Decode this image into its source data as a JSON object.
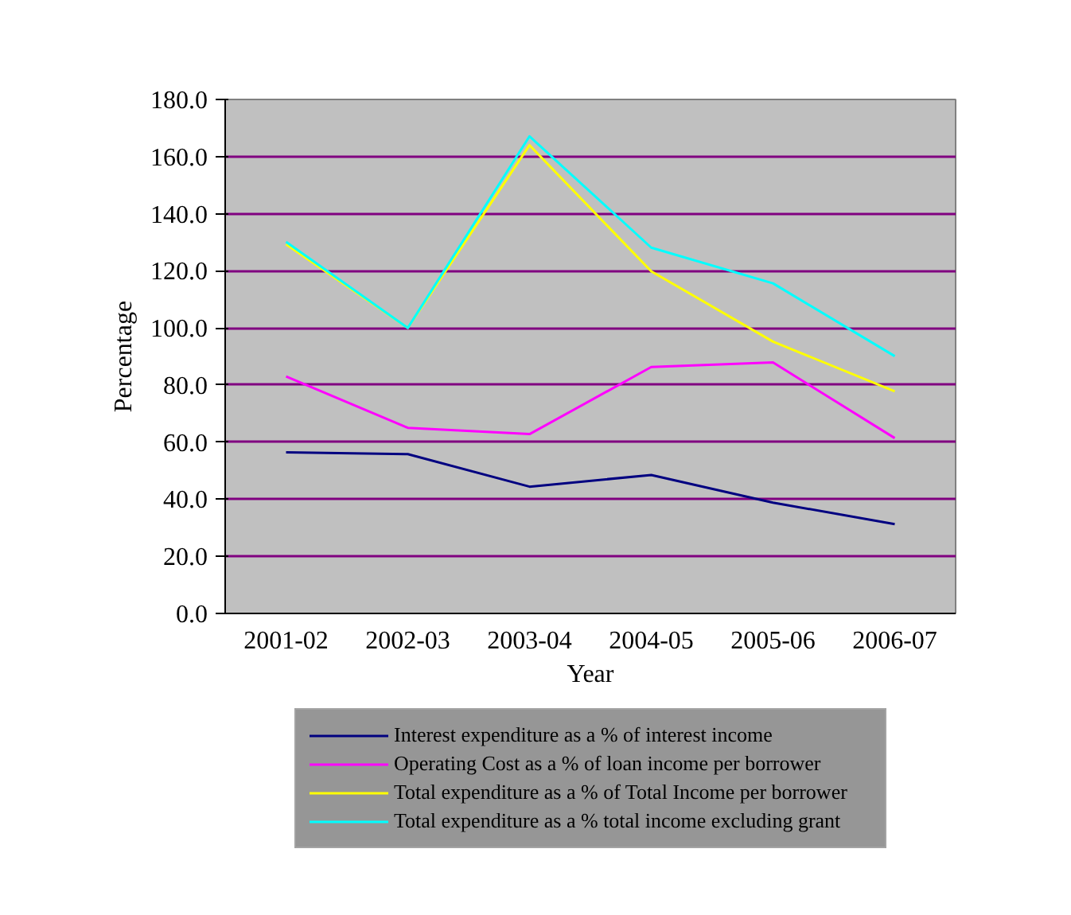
{
  "chart_data": {
    "type": "line",
    "xlabel": "Year",
    "ylabel": "Percentage",
    "categories": [
      "2001-02",
      "2002-03",
      "2003-04",
      "2004-05",
      "2005-06",
      "2006-07"
    ],
    "ylim": [
      0,
      180
    ],
    "yticks": [
      {
        "value": 0,
        "label": "0.0"
      },
      {
        "value": 20,
        "label": "20.0"
      },
      {
        "value": 40,
        "label": "40.0"
      },
      {
        "value": 60,
        "label": "60.0"
      },
      {
        "value": 80,
        "label": "80.0"
      },
      {
        "value": 100,
        "label": "100.0"
      },
      {
        "value": 120,
        "label": "120.0"
      },
      {
        "value": 140,
        "label": "140.0"
      },
      {
        "value": 160,
        "label": "160.0"
      },
      {
        "value": 180,
        "label": "180.0"
      }
    ],
    "grid": "y",
    "legend": "bottom",
    "marker": "none",
    "line_style": "solid",
    "series": [
      {
        "name": "Interest expenditure as a % of interest income",
        "color": "#000080",
        "values": [
          56.4,
          55.8,
          44.4,
          48.5,
          38.8,
          31.3
        ]
      },
      {
        "name": "Operating Cost as a % of loan income per borrower",
        "color": "#ff00ff",
        "values": [
          83.0,
          65.0,
          62.8,
          86.3,
          87.9,
          61.4
        ]
      },
      {
        "name": "Total expenditure as a % of Total Income per borrower",
        "color": "#ffff00",
        "values": [
          129.3,
          100.0,
          164.0,
          119.8,
          95.2,
          77.8
        ]
      },
      {
        "name": "Total expenditure as a % total income excluding grant",
        "color": "#00ffff",
        "values": [
          130.1,
          100.0,
          167.1,
          128.1,
          115.6,
          90.1
        ]
      }
    ]
  }
}
